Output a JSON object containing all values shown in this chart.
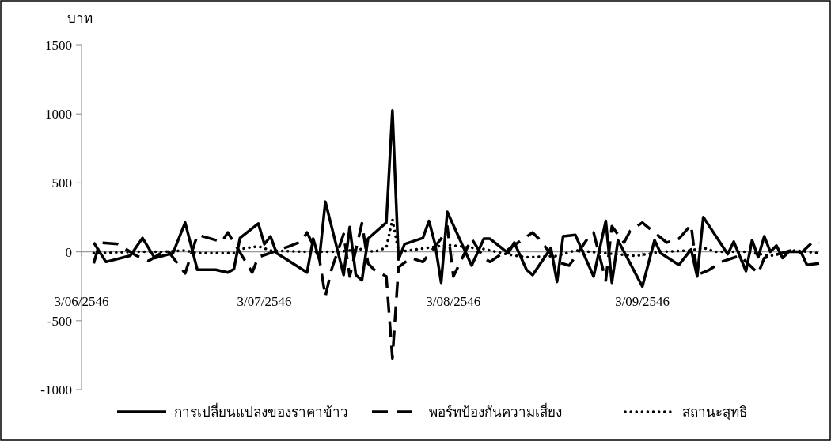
{
  "chart_data": {
    "type": "line",
    "ylabel": "บาท",
    "legend": "bottom",
    "ylim": [
      -1000,
      1500
    ],
    "yticks": [
      -1000,
      -500,
      0,
      500,
      1000,
      1500
    ],
    "xlim": [
      "2546-06-03",
      "2546-10-02"
    ],
    "xticks": [
      {
        "value": "2546-06-03",
        "label": "3/06/2546"
      },
      {
        "value": "2546-07-03",
        "label": "3/07/2546"
      },
      {
        "value": "2546-08-03",
        "label": "3/08/2546"
      },
      {
        "value": "2546-09-03",
        "label": "3/09/2546"
      }
    ],
    "series": [
      {
        "name": "การเปลี่ยนแปลงของราคาข้าว",
        "color": "#000000",
        "line_style": "solid",
        "x": [
          "2546-06-05",
          "2546-06-07",
          "2546-06-11",
          "2546-06-13",
          "2546-06-15",
          "2546-06-18",
          "2546-06-20",
          "2546-06-22",
          "2546-06-25",
          "2546-06-27",
          "2546-06-28",
          "2546-06-29",
          "2546-07-02",
          "2546-07-03",
          "2546-07-04",
          "2546-07-05",
          "2546-07-10",
          "2546-07-11",
          "2546-07-12",
          "2546-07-13",
          "2546-07-16",
          "2546-07-17",
          "2546-07-18",
          "2546-07-19",
          "2546-07-20",
          "2546-07-23",
          "2546-07-24",
          "2546-07-25",
          "2546-07-26",
          "2546-07-29",
          "2546-07-30",
          "2546-07-31",
          "2546-08-01",
          "2546-08-02",
          "2546-08-06",
          "2546-08-08",
          "2546-08-09",
          "2546-08-12",
          "2546-08-13",
          "2546-08-15",
          "2546-08-16",
          "2546-08-19",
          "2546-08-20",
          "2546-08-21",
          "2546-08-23",
          "2546-08-26",
          "2546-08-28",
          "2546-08-29",
          "2546-08-30",
          "2546-09-02",
          "2546-09-03",
          "2546-09-05",
          "2546-09-06",
          "2546-09-09",
          "2546-09-11",
          "2546-09-12",
          "2546-09-13",
          "2546-09-17",
          "2546-09-18",
          "2546-09-20",
          "2546-09-21",
          "2546-09-22",
          "2546-09-23",
          "2546-09-24",
          "2546-09-25",
          "2546-09-26",
          "2546-09-27",
          "2546-09-29",
          "2546-09-30",
          "2546-10-02"
        ],
        "values": [
          67,
          -73,
          -28,
          100,
          -45,
          -10,
          212,
          -130,
          -130,
          -150,
          -125,
          100,
          205,
          55,
          112,
          -10,
          -150,
          95,
          -56,
          364,
          -168,
          180,
          -168,
          -207,
          95,
          212,
          1025,
          -56,
          56,
          100,
          224,
          56,
          -224,
          290,
          -100,
          95,
          95,
          -10,
          67,
          -130,
          -168,
          28,
          -218,
          112,
          123,
          -179,
          224,
          -224,
          84,
          -168,
          -252,
          84,
          -10,
          -95,
          17,
          -179,
          252,
          -17,
          73,
          -140,
          84,
          -39,
          112,
          0,
          45,
          -45,
          0,
          0,
          -95,
          -84
        ]
      },
      {
        "name": "พอร์ทป้องกันความเสี่ยง",
        "color": "#000000",
        "line_style": "dashed",
        "x": [
          "2546-06-05",
          "2546-06-06",
          "2546-06-09",
          "2546-06-12",
          "2546-06-14",
          "2546-06-17",
          "2546-06-20",
          "2546-06-22",
          "2546-06-26",
          "2546-06-27",
          "2546-07-01",
          "2546-07-02",
          "2546-07-07",
          "2546-07-09",
          "2546-07-10",
          "2546-07-12",
          "2546-07-13",
          "2546-07-14",
          "2546-07-16",
          "2546-07-17",
          "2546-07-19",
          "2546-07-20",
          "2546-07-21",
          "2546-07-23",
          "2546-07-24",
          "2546-07-25",
          "2546-07-27",
          "2546-07-29",
          "2546-08-01",
          "2546-08-02",
          "2546-08-03",
          "2546-08-06",
          "2546-08-08",
          "2546-08-09",
          "2546-08-12",
          "2546-08-16",
          "2546-08-17",
          "2546-08-20",
          "2546-08-22",
          "2546-08-25",
          "2546-08-26",
          "2546-08-28",
          "2546-08-29",
          "2546-08-31",
          "2546-09-01",
          "2546-09-03",
          "2546-09-07",
          "2546-09-09",
          "2546-09-11",
          "2546-09-12",
          "2546-09-14",
          "2546-09-16",
          "2546-09-19",
          "2546-09-22",
          "2546-09-23",
          "2546-09-28",
          "2546-09-29",
          "2546-10-01",
          "2546-10-02"
        ],
        "values": [
          -84,
          67,
          56,
          -28,
          -67,
          17,
          -157,
          123,
          73,
          140,
          -150,
          -39,
          39,
          73,
          140,
          -45,
          -325,
          -130,
          129,
          -179,
          207,
          -84,
          -130,
          -179,
          -773,
          -112,
          -45,
          -73,
          95,
          185,
          -179,
          95,
          -45,
          -73,
          17,
          140,
          95,
          -73,
          -100,
          95,
          140,
          -207,
          185,
          67,
          151,
          212,
          67,
          95,
          196,
          -168,
          -130,
          -73,
          -28,
          -157,
          -45,
          17,
          -10,
          73,
          67
        ]
      },
      {
        "name": "สถานะสุทธิ",
        "color": "#000000",
        "line_style": "dotted",
        "x": [
          "2546-06-05",
          "2546-06-12",
          "2546-06-16",
          "2546-06-20",
          "2546-06-22",
          "2546-06-28",
          "2546-06-29",
          "2546-07-02",
          "2546-07-04",
          "2546-07-10",
          "2546-07-15",
          "2546-07-19",
          "2546-07-21",
          "2546-07-23",
          "2546-07-24",
          "2546-07-25",
          "2546-07-30",
          "2546-08-02",
          "2546-08-08",
          "2546-08-12",
          "2546-08-15",
          "2546-08-20",
          "2546-08-23",
          "2546-08-28",
          "2546-09-02",
          "2546-09-06",
          "2546-09-11",
          "2546-09-13",
          "2546-09-15",
          "2546-09-20",
          "2546-09-24",
          "2546-09-28",
          "2546-10-02"
        ],
        "values": [
          -10,
          0,
          0,
          10,
          -10,
          -10,
          20,
          40,
          10,
          0,
          0,
          20,
          0,
          30,
          235,
          0,
          30,
          50,
          20,
          -20,
          -40,
          -30,
          10,
          -10,
          -30,
          0,
          10,
          30,
          0,
          0,
          -30,
          10,
          -10
        ]
      }
    ]
  }
}
